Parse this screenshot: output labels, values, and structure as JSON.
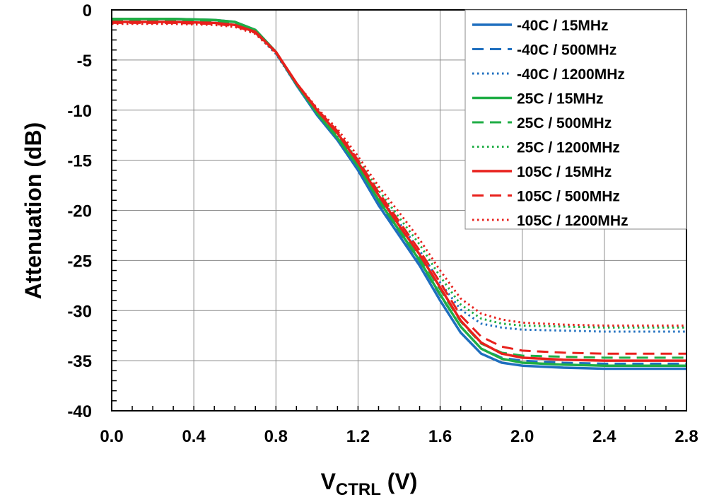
{
  "chart_data": {
    "type": "line",
    "title": "",
    "xlabel": {
      "main": "V",
      "sub": "CTRL",
      "unit": " (V)"
    },
    "ylabel": "Attenuation (dB)",
    "xlim": [
      0,
      2.8
    ],
    "ylim": [
      -40,
      0
    ],
    "xticks": [
      "0.0",
      "0.4",
      "0.8",
      "1.2",
      "1.6",
      "2.0",
      "2.4",
      "2.8"
    ],
    "yticks": [
      "0",
      "-5",
      "-10",
      "-15",
      "-20",
      "-25",
      "-30",
      "-35",
      "-40"
    ],
    "grid": true,
    "legend_position": "top-right",
    "series": [
      {
        "name": "-40C /  15MHz",
        "color": "#1f6fbf",
        "dash": "solid",
        "x": [
          0,
          0.3,
          0.5,
          0.6,
          0.7,
          0.8,
          0.9,
          1.0,
          1.1,
          1.2,
          1.3,
          1.4,
          1.5,
          1.6,
          1.7,
          1.8,
          1.9,
          2.0,
          2.2,
          2.4,
          2.6,
          2.8
        ],
        "y": [
          -0.9,
          -0.9,
          -1.0,
          -1.2,
          -2.0,
          -4.2,
          -7.5,
          -10.5,
          -13.0,
          -16.0,
          -19.5,
          -22.5,
          -25.5,
          -29.0,
          -32.2,
          -34.3,
          -35.2,
          -35.5,
          -35.7,
          -35.8,
          -35.8,
          -35.8
        ]
      },
      {
        "name": "-40C /  500MHz",
        "color": "#1f6fbf",
        "dash": "dashed",
        "x": [
          0,
          0.3,
          0.5,
          0.6,
          0.7,
          0.8,
          0.9,
          1.0,
          1.1,
          1.2,
          1.3,
          1.4,
          1.5,
          1.6,
          1.7,
          1.8,
          1.9,
          2.0,
          2.2,
          2.4,
          2.6,
          2.8
        ],
        "y": [
          -1.0,
          -1.0,
          -1.1,
          -1.3,
          -2.1,
          -4.3,
          -7.5,
          -10.4,
          -12.8,
          -15.8,
          -19.2,
          -22.1,
          -25.1,
          -28.5,
          -31.6,
          -33.8,
          -34.7,
          -35.0,
          -35.2,
          -35.3,
          -35.3,
          -35.3
        ]
      },
      {
        "name": "-40C /  1200MHz",
        "color": "#1f6fbf",
        "dash": "dotted",
        "x": [
          0,
          0.3,
          0.5,
          0.6,
          0.7,
          0.8,
          0.9,
          1.0,
          1.1,
          1.2,
          1.3,
          1.4,
          1.5,
          1.6,
          1.7,
          1.8,
          1.9,
          2.0,
          2.2,
          2.4,
          2.6,
          2.8
        ],
        "y": [
          -1.2,
          -1.2,
          -1.3,
          -1.5,
          -2.3,
          -4.4,
          -7.5,
          -10.2,
          -12.5,
          -15.4,
          -18.5,
          -21.2,
          -24.0,
          -27.2,
          -29.9,
          -31.3,
          -31.7,
          -31.9,
          -32.0,
          -32.1,
          -32.1,
          -32.1
        ]
      },
      {
        "name": "25C /  15MHz",
        "color": "#1fad45",
        "dash": "solid",
        "x": [
          0,
          0.3,
          0.5,
          0.6,
          0.7,
          0.8,
          0.9,
          1.0,
          1.1,
          1.2,
          1.3,
          1.4,
          1.5,
          1.6,
          1.7,
          1.8,
          1.9,
          2.0,
          2.2,
          2.4,
          2.6,
          2.8
        ],
        "y": [
          -0.9,
          -0.9,
          -1.0,
          -1.2,
          -2.0,
          -4.2,
          -7.4,
          -10.3,
          -12.8,
          -15.6,
          -19.0,
          -22.0,
          -25.0,
          -28.4,
          -31.6,
          -33.8,
          -34.8,
          -35.2,
          -35.4,
          -35.5,
          -35.5,
          -35.5
        ]
      },
      {
        "name": "25C /  500MHz",
        "color": "#1fad45",
        "dash": "dashed",
        "x": [
          0,
          0.3,
          0.5,
          0.6,
          0.7,
          0.8,
          0.9,
          1.0,
          1.1,
          1.2,
          1.3,
          1.4,
          1.5,
          1.6,
          1.7,
          1.8,
          1.9,
          2.0,
          2.2,
          2.4,
          2.6,
          2.8
        ],
        "y": [
          -1.1,
          -1.1,
          -1.2,
          -1.4,
          -2.1,
          -4.2,
          -7.4,
          -10.2,
          -12.6,
          -15.4,
          -18.7,
          -21.6,
          -24.6,
          -27.9,
          -31.1,
          -33.3,
          -34.2,
          -34.5,
          -34.6,
          -34.7,
          -34.7,
          -34.7
        ]
      },
      {
        "name": "25C /  1200MHz",
        "color": "#1fad45",
        "dash": "dotted",
        "x": [
          0,
          0.3,
          0.5,
          0.6,
          0.7,
          0.8,
          0.9,
          1.0,
          1.1,
          1.2,
          1.3,
          1.4,
          1.5,
          1.6,
          1.7,
          1.8,
          1.9,
          2.0,
          2.2,
          2.4,
          2.6,
          2.8
        ],
        "y": [
          -1.3,
          -1.3,
          -1.4,
          -1.6,
          -2.3,
          -4.3,
          -7.4,
          -10.0,
          -12.3,
          -15.0,
          -18.0,
          -20.7,
          -23.4,
          -26.6,
          -29.4,
          -30.8,
          -31.3,
          -31.5,
          -31.6,
          -31.7,
          -31.7,
          -31.7
        ]
      },
      {
        "name": "105C /  15MHz",
        "color": "#e8201c",
        "dash": "solid",
        "x": [
          0,
          0.3,
          0.5,
          0.6,
          0.7,
          0.8,
          0.9,
          1.0,
          1.1,
          1.2,
          1.3,
          1.4,
          1.5,
          1.6,
          1.7,
          1.8,
          1.9,
          2.0,
          2.2,
          2.4,
          2.6,
          2.8
        ],
        "y": [
          -1.2,
          -1.2,
          -1.3,
          -1.5,
          -2.2,
          -4.2,
          -7.3,
          -10.0,
          -12.3,
          -15.2,
          -18.5,
          -21.5,
          -24.4,
          -27.7,
          -31.0,
          -33.2,
          -34.3,
          -34.7,
          -34.9,
          -35.0,
          -35.0,
          -35.0
        ]
      },
      {
        "name": "105C /  500MHz",
        "color": "#e8201c",
        "dash": "dashed",
        "x": [
          0,
          0.3,
          0.5,
          0.6,
          0.7,
          0.8,
          0.9,
          1.0,
          1.1,
          1.2,
          1.3,
          1.4,
          1.5,
          1.6,
          1.7,
          1.8,
          1.9,
          2.0,
          2.2,
          2.4,
          2.6,
          2.8
        ],
        "y": [
          -1.3,
          -1.3,
          -1.4,
          -1.6,
          -2.3,
          -4.2,
          -7.3,
          -9.9,
          -12.1,
          -15.0,
          -18.2,
          -21.1,
          -24.0,
          -27.2,
          -30.5,
          -32.6,
          -33.6,
          -34.0,
          -34.2,
          -34.3,
          -34.3,
          -34.3
        ]
      },
      {
        "name": "105C /  1200MHz",
        "color": "#e8201c",
        "dash": "dotted",
        "x": [
          0,
          0.3,
          0.5,
          0.6,
          0.7,
          0.8,
          0.9,
          1.0,
          1.1,
          1.2,
          1.3,
          1.4,
          1.5,
          1.6,
          1.7,
          1.8,
          1.9,
          2.0,
          2.2,
          2.4,
          2.6,
          2.8
        ],
        "y": [
          -1.4,
          -1.4,
          -1.5,
          -1.7,
          -2.4,
          -4.3,
          -7.3,
          -9.8,
          -11.9,
          -14.6,
          -17.6,
          -20.2,
          -22.9,
          -26.0,
          -28.8,
          -30.3,
          -30.9,
          -31.2,
          -31.4,
          -31.5,
          -31.5,
          -31.5
        ]
      }
    ]
  }
}
